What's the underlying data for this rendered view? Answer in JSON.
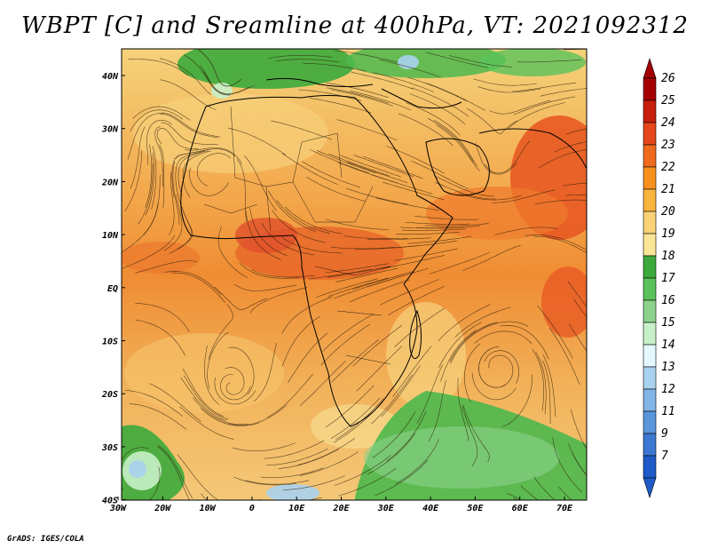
{
  "title": "WBPT [C] and Sreamline at 400hPa, VT: 2021092312",
  "credit": "GrADS: IGES/COLA",
  "lon_labels": [
    "30W",
    "20W",
    "10W",
    "0",
    "10E",
    "20E",
    "30E",
    "40E",
    "50E",
    "60E",
    "70E"
  ],
  "lat_labels": [
    "40N",
    "30N",
    "20N",
    "10N",
    "EQ",
    "10S",
    "20S",
    "30S",
    "40S"
  ],
  "colorbar": {
    "labels": [
      "26",
      "25",
      "24",
      "23",
      "22",
      "21",
      "20",
      "19",
      "18",
      "17",
      "16",
      "15",
      "14",
      "13",
      "12",
      "11",
      "9",
      "7"
    ],
    "colors": [
      "#a50000",
      "#c81e0c",
      "#e6461c",
      "#f06a1e",
      "#f8901e",
      "#fab43c",
      "#fad278",
      "#fae696",
      "#3caa3c",
      "#5ac25a",
      "#8cd28c",
      "#c8f0c8",
      "#e6f8ff",
      "#aad2f0",
      "#82b4e6",
      "#5a96dc",
      "#3c78d2",
      "#1e5ac8"
    ]
  }
}
